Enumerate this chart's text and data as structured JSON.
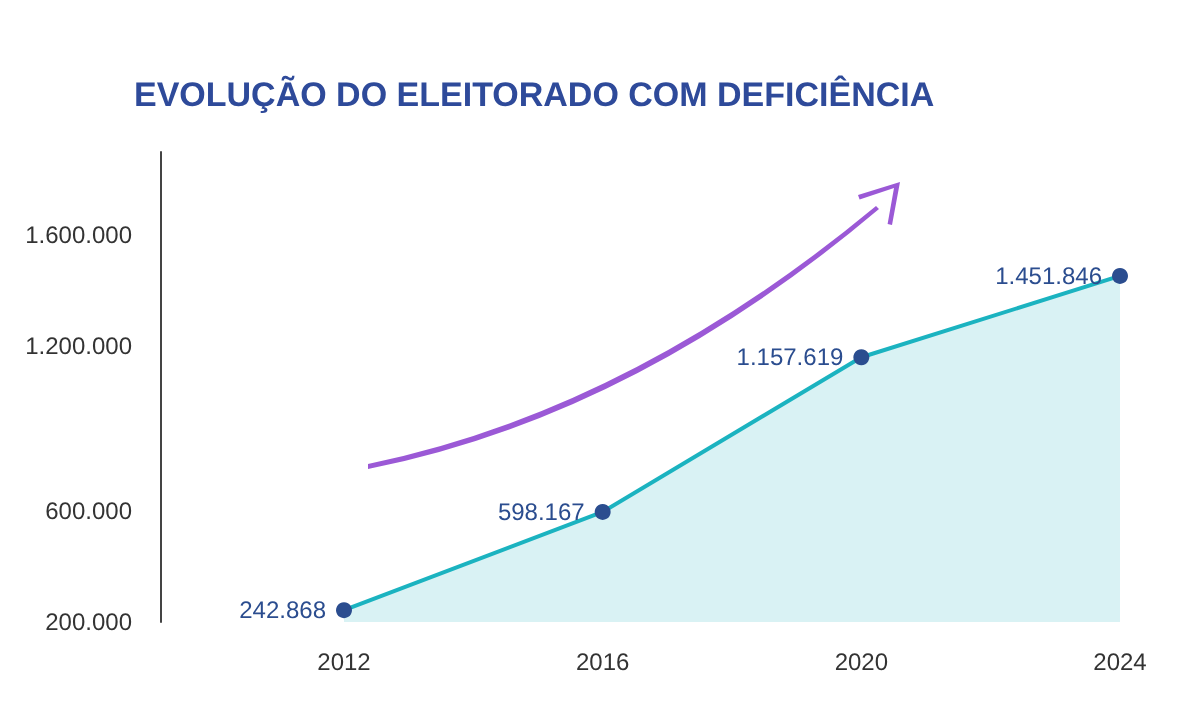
{
  "chart_data": {
    "type": "area",
    "title": "EVOLUÇÃO DO ELEITORADO COM DEFICIÊNCIA",
    "categories": [
      "2012",
      "2016",
      "2020",
      "2024"
    ],
    "series": [
      {
        "color": "#1bb3c0",
        "values": [
          242868,
          598167,
          1157619,
          1451846
        ],
        "value_labels": [
          "242.868",
          "598.167",
          "1.157.619",
          "1.451.846"
        ]
      }
    ],
    "ylim": [
      200000,
      1900000
    ],
    "yticks": [
      {
        "value": 200000,
        "label": "200.000"
      },
      {
        "value": 600000,
        "label": "600.000"
      },
      {
        "value": 1200000,
        "label": "1.200.000"
      },
      {
        "value": 1600000,
        "label": "1.600.000"
      }
    ],
    "grid": false,
    "marker": "circle",
    "line_style": "solid"
  }
}
